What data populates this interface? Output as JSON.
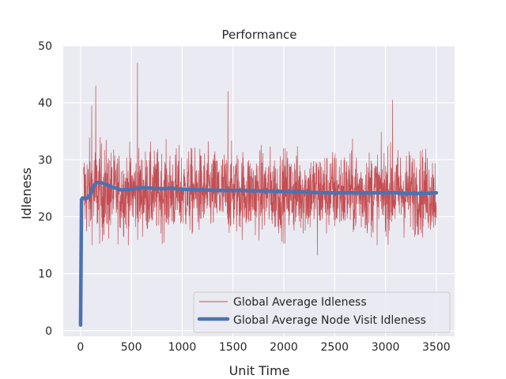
{
  "chart_data": {
    "type": "line",
    "title": "Performance",
    "xlabel": "Unit Time",
    "ylabel": "Idleness",
    "xlim": [
      -170,
      3680
    ],
    "ylim": [
      -1,
      50
    ],
    "xticks": [
      0,
      500,
      1000,
      1500,
      2000,
      2500,
      3000,
      3500
    ],
    "yticks": [
      0,
      10,
      20,
      30,
      40,
      50
    ],
    "grid": true,
    "legend_position": "lower right",
    "colors": {
      "background": "#eaeaf2",
      "grid": "#ffffff",
      "series_idleness": "#c44e52",
      "series_node_visit": "#4c72b0"
    },
    "series": [
      {
        "name": "Global Average Idleness",
        "style": "thin-noisy-line",
        "x_range": [
          0,
          3500
        ],
        "mean": 24.3,
        "typical_range": [
          17,
          32
        ],
        "spikes": [
          {
            "x": 560,
            "y": 47
          },
          {
            "x": 150,
            "y": 43
          },
          {
            "x": 1450,
            "y": 42
          },
          {
            "x": 3070,
            "y": 40.5
          },
          {
            "x": 110,
            "y": 39.5
          },
          {
            "x": 2330,
            "y": 13.2
          }
        ]
      },
      {
        "name": "Global Average Node Visit Idleness",
        "style": "thick-line",
        "x": [
          0,
          5,
          10,
          20,
          60,
          100,
          150,
          200,
          300,
          400,
          500,
          600,
          700,
          800,
          900,
          1000,
          1200,
          1400,
          1600,
          1800,
          2000,
          2200,
          2400,
          2600,
          2800,
          3000,
          3100,
          3200,
          3300,
          3400,
          3500
        ],
        "y": [
          1,
          12,
          23,
          23.3,
          23.2,
          24,
          26,
          26,
          25.3,
          24.7,
          24.8,
          25.1,
          25,
          24.9,
          25,
          24.8,
          24.7,
          24.6,
          24.6,
          24.5,
          24.4,
          24.3,
          24.2,
          24.2,
          24.2,
          24.2,
          24.2,
          24.1,
          24.1,
          24.1,
          24.2
        ]
      }
    ]
  }
}
